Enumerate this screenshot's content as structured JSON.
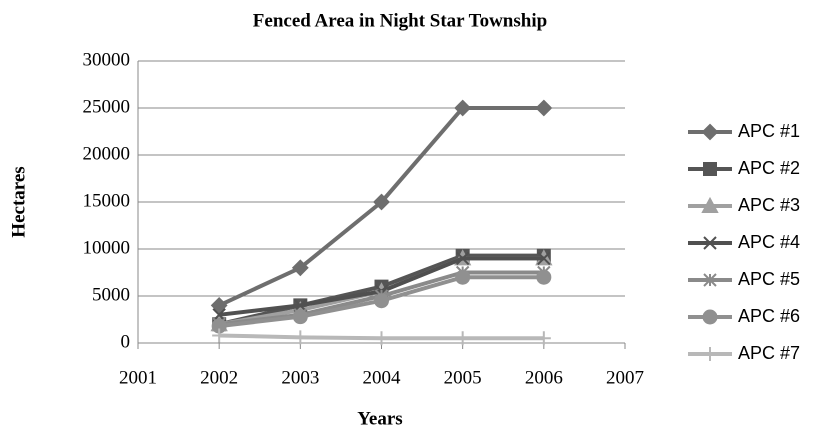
{
  "chart_data": {
    "type": "line",
    "title": "Fenced Area in Night Star Township",
    "x_label": "Years",
    "y_label": "Hectares",
    "x": [
      2002,
      2003,
      2004,
      2005,
      2006
    ],
    "xlim": [
      2001,
      2007
    ],
    "xticks": [
      2001,
      2002,
      2003,
      2004,
      2005,
      2006,
      2007
    ],
    "ylim": [
      0,
      30000
    ],
    "yticks": [
      0,
      5000,
      10000,
      15000,
      20000,
      25000,
      30000
    ],
    "grid": true,
    "legend": "right",
    "series": [
      {
        "name": "APC #1",
        "color": "#6e6e6e",
        "marker": "diamond",
        "values": [
          4000,
          8000,
          15000,
          25000,
          25000
        ]
      },
      {
        "name": "APC #2",
        "color": "#555555",
        "marker": "square",
        "values": [
          2000,
          4000,
          6000,
          9300,
          9300
        ]
      },
      {
        "name": "APC #3",
        "color": "#a0a0a0",
        "marker": "triangle",
        "values": [
          2000,
          3500,
          5500,
          9000,
          9000
        ]
      },
      {
        "name": "APC #4",
        "color": "#505050",
        "marker": "x",
        "values": [
          3000,
          4000,
          5500,
          9000,
          9000
        ]
      },
      {
        "name": "APC #5",
        "color": "#8a8a8a",
        "marker": "asterisk",
        "values": [
          2000,
          3000,
          5000,
          7500,
          7500
        ]
      },
      {
        "name": "APC #6",
        "color": "#909090",
        "marker": "circle",
        "values": [
          1800,
          2800,
          4500,
          7000,
          7000
        ]
      },
      {
        "name": "APC #7",
        "color": "#b8b8b8",
        "marker": "plus",
        "values": [
          800,
          600,
          500,
          500,
          500
        ]
      }
    ]
  }
}
